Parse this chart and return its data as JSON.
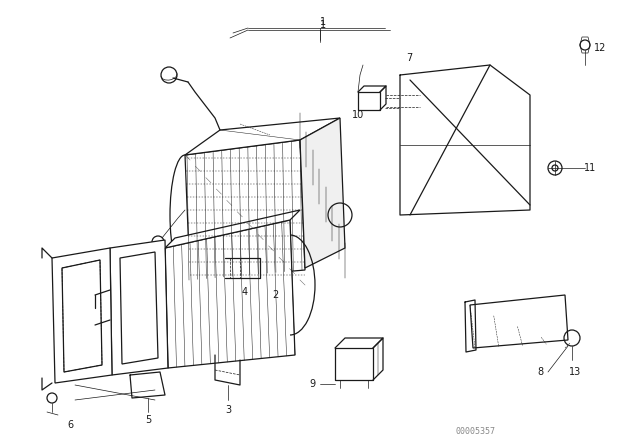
{
  "bg_color": "#ffffff",
  "line_color": "#1a1a1a",
  "watermark": "00005357",
  "watermark_color": "#888888",
  "figsize": [
    6.4,
    4.48
  ],
  "dpi": 100
}
